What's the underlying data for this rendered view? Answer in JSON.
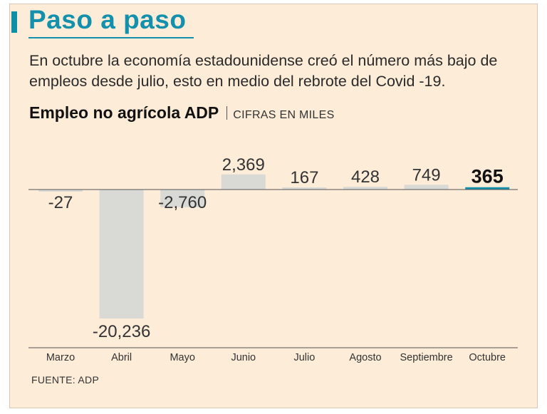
{
  "header": {
    "title": "Paso a paso",
    "subtitle": "En octubre la economía estadounidense creó el número más bajo de empleos desde julio, esto en medio del rebrote del Covid -19."
  },
  "chart_head": {
    "title": "Empleo no agrícola ADP",
    "unit": "CIFRAS EN MILES"
  },
  "source": "FUENTE: ADP",
  "colors": {
    "bar": "#d9d9d6",
    "highlight": "#1390ac",
    "background": "#fcecd8"
  },
  "chart_data": {
    "type": "bar",
    "title": "Empleo no agrícola ADP",
    "ylabel": "Cifras en miles",
    "categories": [
      "Marzo",
      "Abril",
      "Mayo",
      "Junio",
      "Julio",
      "Agosto",
      "Septiembre",
      "Octubre"
    ],
    "values": [
      -27,
      -20236,
      -2760,
      2369,
      167,
      428,
      749,
      365
    ],
    "value_labels": [
      "-27",
      "-20,236",
      "-2,760",
      "2,369",
      "167",
      "428",
      "749",
      "365"
    ],
    "highlight": "Octubre"
  }
}
